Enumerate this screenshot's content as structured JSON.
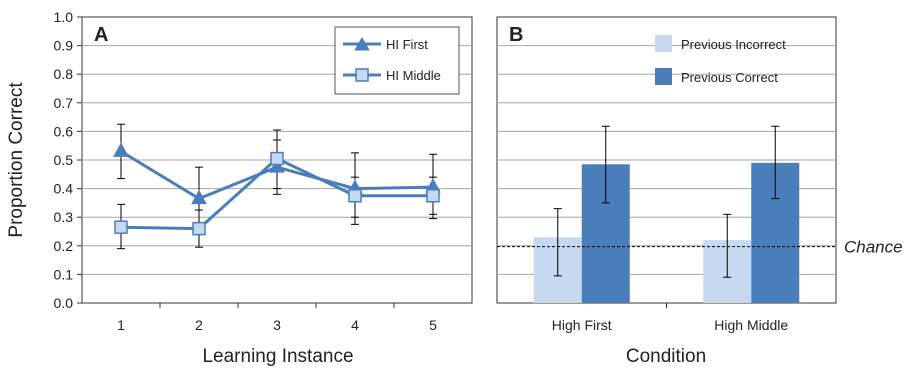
{
  "y_axis_label": "Proportion Correct",
  "chance_label": "Chance",
  "chart_data": [
    {
      "panel_label": "A",
      "type": "line",
      "xlabel": "Learning Instance",
      "x": [
        1,
        2,
        3,
        4,
        5
      ],
      "x_tick_labels": [
        "1",
        "2",
        "3",
        "4",
        "5"
      ],
      "ylim": [
        0,
        1.0
      ],
      "y_ticks": [
        0.0,
        0.1,
        0.2,
        0.3,
        0.4,
        0.5,
        0.6,
        0.7,
        0.8,
        0.9,
        1.0
      ],
      "y_tick_labels": [
        "0.0",
        "0.1",
        "0.2",
        "0.3",
        "0.4",
        "0.5",
        "0.6",
        "0.7",
        "0.8",
        "0.9",
        "1.0"
      ],
      "grid": true,
      "legend_position": "top-right",
      "series": [
        {
          "name": "HI First",
          "marker": "triangle",
          "color": "#4a7ebb",
          "values": [
            0.53,
            0.365,
            0.475,
            0.4,
            0.405
          ],
          "err_low": [
            0.435,
            0.27,
            0.38,
            0.3,
            0.31
          ],
          "err_high": [
            0.625,
            0.475,
            0.57,
            0.525,
            0.52
          ]
        },
        {
          "name": "HI Middle",
          "marker": "square",
          "color": "#4a7ebb",
          "marker_fill": "#c6d9f1",
          "values": [
            0.265,
            0.26,
            0.505,
            0.375,
            0.375
          ],
          "err_low": [
            0.19,
            0.195,
            0.4,
            0.275,
            0.295
          ],
          "err_high": [
            0.345,
            0.325,
            0.605,
            0.44,
            0.44
          ]
        }
      ]
    },
    {
      "panel_label": "B",
      "type": "bar",
      "xlabel": "Condition",
      "categories": [
        "High First",
        "High Middle"
      ],
      "ylim": [
        0,
        1.0
      ],
      "grid": true,
      "legend_position": "top-right",
      "reference_line": 0.197,
      "series": [
        {
          "name": "Previous Incorrect",
          "color": "#c6d9f1",
          "values": [
            0.23,
            0.22
          ],
          "err_low": [
            0.095,
            0.09
          ],
          "err_high": [
            0.33,
            0.31
          ]
        },
        {
          "name": "Previous Correct",
          "color": "#4a7ebb",
          "values": [
            0.485,
            0.49
          ],
          "err_low": [
            0.35,
            0.365
          ],
          "err_high": [
            0.618,
            0.618
          ]
        }
      ]
    }
  ]
}
